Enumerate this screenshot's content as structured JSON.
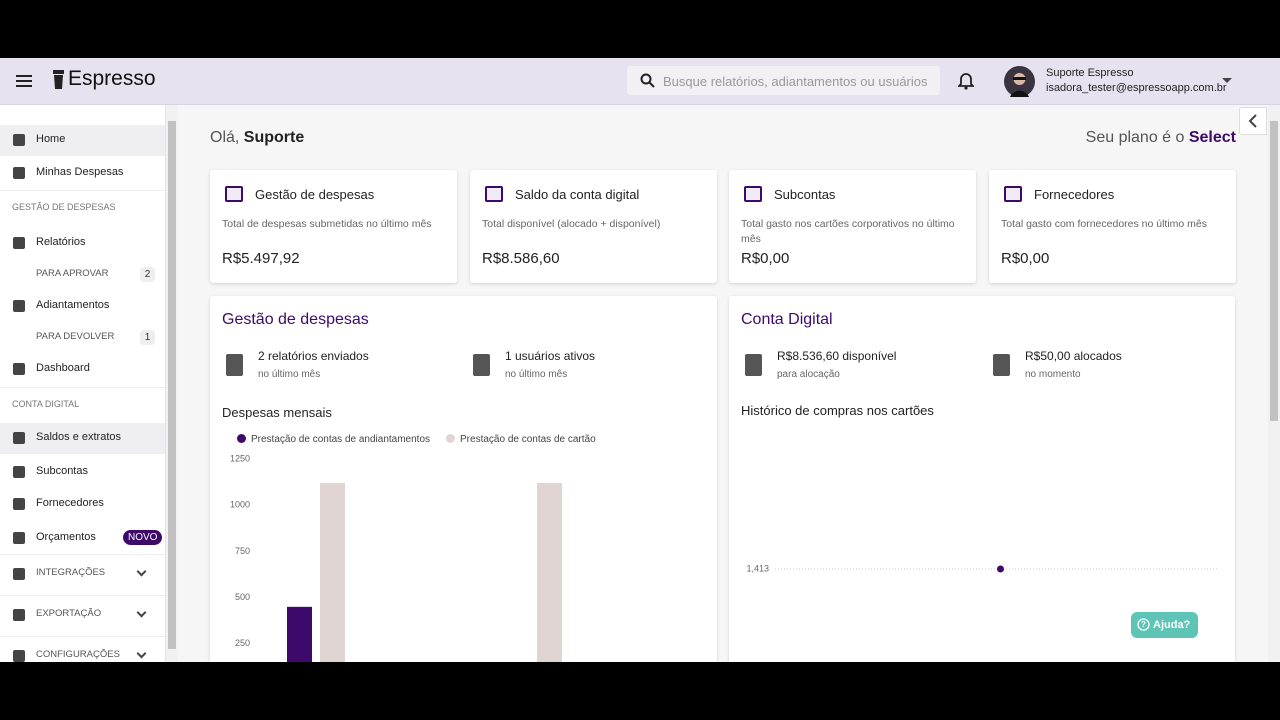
{
  "header": {
    "logo": "Espresso",
    "search_placeholder": "Busque relatórios, adiantamentos ou usuários",
    "user_name": "Suporte Espresso",
    "user_email": "isadora_tester@espressoapp.com.br"
  },
  "sidebar": [
    {
      "label": "Home"
    },
    {
      "label": "Minhas Despesas"
    },
    {
      "section": "GESTÃO DE DESPESAS"
    },
    {
      "label": "Relatórios"
    },
    {
      "label": "PARA APROVAR",
      "badge": 2
    },
    {
      "label": "Adiantamentos"
    },
    {
      "label": "PARA DEVOLVER",
      "badge": 1
    },
    {
      "label": "Dashboard"
    },
    {
      "section": "CONTA DIGITAL"
    },
    {
      "label": "Saldos e extratos"
    },
    {
      "label": "Subcontas"
    },
    {
      "label": "Fornecedores"
    },
    {
      "label": "Orçamentos",
      "badge": "NOVO"
    },
    {
      "label": "INTEGRAÇÕES"
    },
    {
      "label": "EXPORTAÇÃO"
    },
    {
      "label": "CONFIGURAÇÕES"
    }
  ],
  "main": {
    "greeting": "Olá,",
    "user": "Suporte",
    "plan_text": "Seu plano é o",
    "plan": "Select",
    "cards": [
      {
        "title": "Gestão de despesas",
        "description": "Total de despesas submetidas no último mês",
        "value": "R$5.497,92"
      },
      {
        "title": "Saldo da conta digital",
        "description": "Total disponível (alocado + disponível)",
        "value": "R$8.586,60"
      },
      {
        "title": "Subcontas",
        "description": "Total gasto nos cartões corporativos no último mês",
        "value": "R$0,00"
      },
      {
        "title": "Fornecedores",
        "description": "Total gasto com fornecedores no último mês",
        "value": "R$0,00"
      }
    ],
    "expenses_panel": {
      "title": "Gestão de despesas",
      "stats": [
        {
          "text": "2 relatórios enviados",
          "sub": "no último mês"
        },
        {
          "text": "1 usuários ativos",
          "sub": "no último mês"
        }
      ],
      "chart": {
        "type": "bar",
        "title": "Despesas mensais",
        "categories": [
          null,
          null
        ],
        "series": [
          {
            "name": "Prestação de contas de andiantamentos",
            "color": "#3d0a6b",
            "values": [
              450,
              0
            ]
          },
          {
            "name": "Prestação de contas de cartão",
            "color": "#e0d5d2",
            "values": [
              1120,
              1120
            ]
          }
        ],
        "ylim": [
          0,
          1250
        ],
        "yticks": [
          250,
          500,
          750,
          1000,
          1250
        ]
      }
    },
    "digital_panel": {
      "title": "Conta Digital",
      "stats": [
        {
          "text": "R$8.536,60 disponível",
          "sub": "para alocação"
        },
        {
          "text": "R$50,00 alocados",
          "sub": "no momento"
        }
      ],
      "chart": {
        "type": "line",
        "title": "Histórico de compras nos cartões",
        "categories": [
          null
        ],
        "series": [
          {
            "color": "#3d0a6b",
            "values": [
              1413
            ]
          }
        ],
        "ylim": [
          1412,
          1414
        ],
        "yticks": [
          {
            "value": 1413,
            "label": "1,413"
          }
        ]
      }
    },
    "help": "Ajuda?"
  }
}
